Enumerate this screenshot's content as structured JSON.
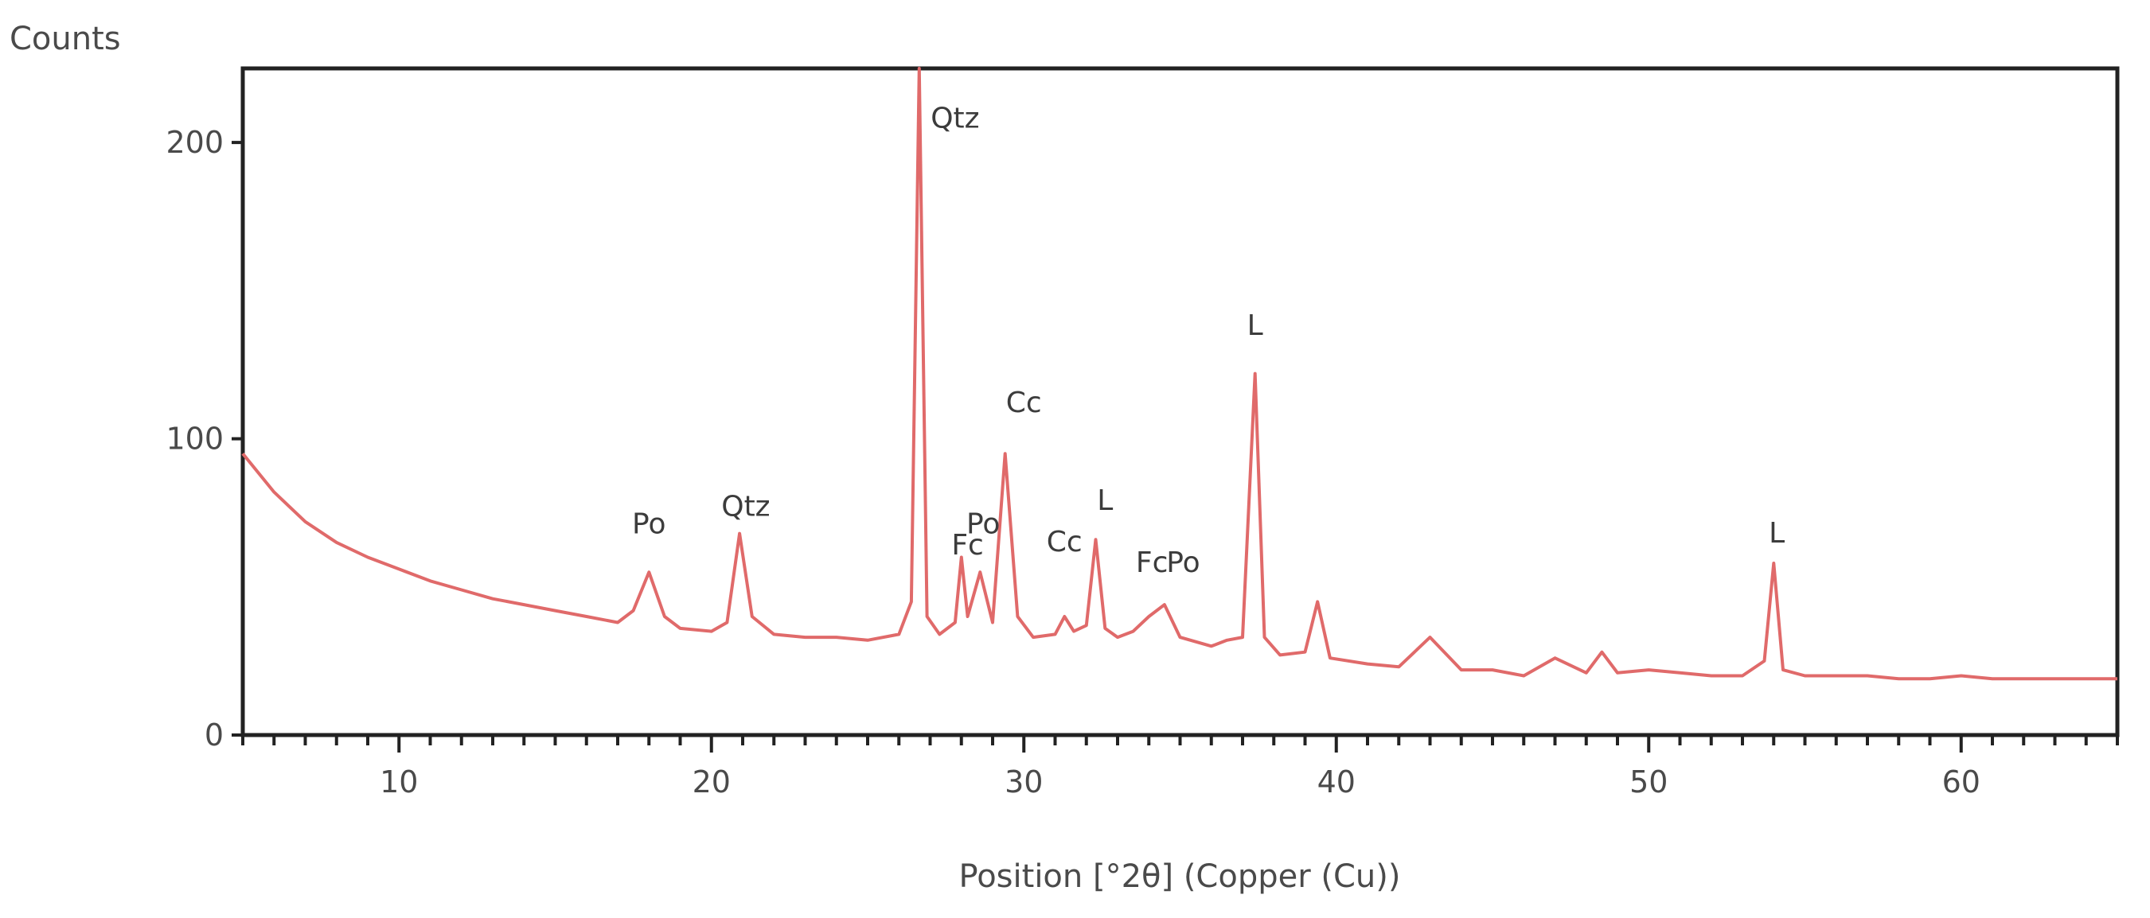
{
  "chart_data": {
    "type": "line",
    "ylabel": "Counts",
    "xlabel": "Position [°2θ] (Copper (Cu))",
    "xlim": [
      5,
      65
    ],
    "ylim": [
      0,
      225
    ],
    "x_ticks": [
      10,
      20,
      30,
      40,
      50,
      60
    ],
    "y_ticks": [
      0,
      100,
      200
    ],
    "x_minor_step": 1,
    "grid": false,
    "line_color": "#e06a6a",
    "series": [
      {
        "x": [
          5,
          6,
          7,
          8,
          9,
          10,
          11,
          12,
          13,
          14,
          15,
          16,
          17,
          17.5,
          18,
          18.5,
          19,
          20,
          20.5,
          20.9,
          21.3,
          22,
          23,
          24,
          25,
          26,
          26.4,
          26.65,
          26.9,
          27.3,
          27.8,
          28.0,
          28.2,
          28.6,
          29.0,
          29.4,
          29.8,
          30.3,
          31.0,
          31.3,
          31.6,
          32.0,
          32.3,
          32.6,
          33.0,
          33.5,
          34.0,
          34.5,
          35.0,
          36.0,
          36.5,
          37.0,
          37.4,
          37.7,
          38.2,
          39.0,
          39.4,
          39.8,
          41.0,
          42.0,
          43.0,
          44.0,
          45.0,
          46.0,
          47.0,
          48.0,
          48.5,
          49.0,
          50.0,
          51.0,
          52.0,
          53.0,
          53.7,
          54.0,
          54.3,
          55.0,
          56.0,
          57.0,
          58.0,
          59.0,
          60.0,
          61.0,
          62.0,
          63.0,
          64.0,
          65.0
        ],
        "y": [
          95,
          82,
          72,
          65,
          60,
          56,
          52,
          49,
          46,
          44,
          42,
          40,
          38,
          42,
          55,
          40,
          36,
          35,
          38,
          68,
          40,
          34,
          33,
          33,
          32,
          34,
          45,
          225,
          40,
          34,
          38,
          60,
          40,
          55,
          38,
          95,
          40,
          33,
          34,
          40,
          35,
          37,
          66,
          36,
          33,
          35,
          40,
          44,
          33,
          30,
          32,
          33,
          122,
          33,
          27,
          28,
          45,
          26,
          24,
          23,
          33,
          22,
          22,
          20,
          26,
          21,
          28,
          21,
          22,
          21,
          20,
          20,
          25,
          58,
          22,
          20,
          20,
          20,
          19,
          19,
          20,
          19,
          19,
          19,
          19,
          19
        ]
      }
    ],
    "annotations": [
      {
        "text": "Po",
        "x": 18.0,
        "y": 68
      },
      {
        "text": "Qtz",
        "x": 21.1,
        "y": 74
      },
      {
        "text": "Qtz",
        "x": 27.8,
        "y": 205
      },
      {
        "text": "Fc",
        "x": 28.2,
        "y": 61
      },
      {
        "text": "Po",
        "x": 28.7,
        "y": 68
      },
      {
        "text": "Cc",
        "x": 30.0,
        "y": 109
      },
      {
        "text": "Cc",
        "x": 31.3,
        "y": 62
      },
      {
        "text": "L",
        "x": 32.6,
        "y": 76
      },
      {
        "text": "Fc",
        "x": 34.1,
        "y": 55
      },
      {
        "text": "Po",
        "x": 35.1,
        "y": 55
      },
      {
        "text": "L",
        "x": 37.4,
        "y": 135
      },
      {
        "text": "L",
        "x": 54.1,
        "y": 65
      }
    ]
  }
}
